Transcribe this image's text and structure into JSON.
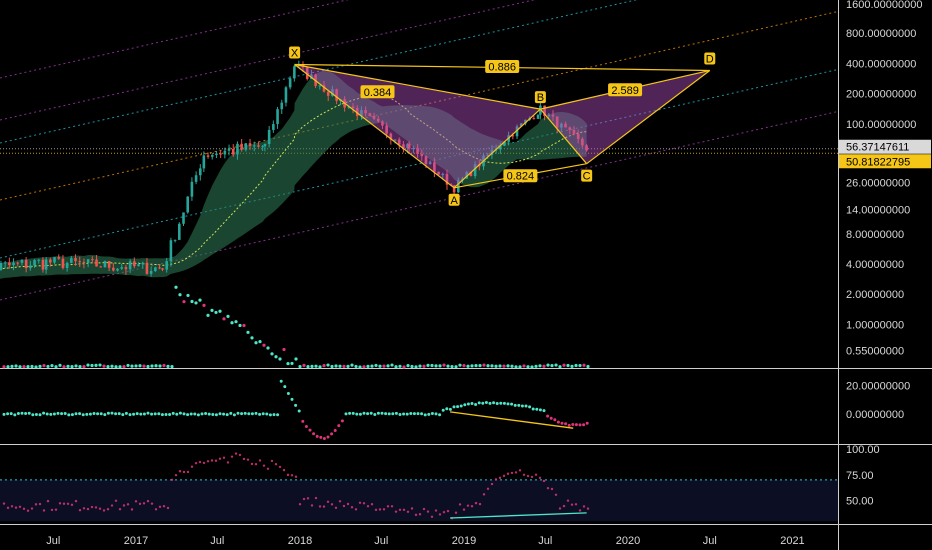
{
  "chart_data": {
    "type": "line",
    "y_scale": "log",
    "title": "",
    "xlabel": "",
    "ylabel": "",
    "x_ticks": [
      "Jul",
      "2017",
      "Jul",
      "2018",
      "Jul",
      "2019",
      "Jul",
      "2020",
      "Jul",
      "2021"
    ],
    "main_pane": {
      "y_ticks": [
        "1600.00000000",
        "800.00000000",
        "400.00000000",
        "200.00000000",
        "100.00000000",
        "26.00000000",
        "14.00000000",
        "8.00000000",
        "4.00000000",
        "2.00000000",
        "1.00000000",
        "0.55000000"
      ],
      "price_badges": [
        {
          "text": "56.37147611",
          "color": "#d9d9d9"
        },
        {
          "text": "50.81822795",
          "color": "#f5c518"
        }
      ],
      "harmonic_pattern": {
        "points": [
          {
            "label": "X",
            "date": "2017-12-20",
            "price": 390
          },
          {
            "label": "A",
            "date": "2018-12-10",
            "price": 23
          },
          {
            "label": "B",
            "date": "2019-06-20",
            "price": 140
          },
          {
            "label": "C",
            "date": "2019-10-01",
            "price": 40
          },
          {
            "label": "D",
            "date": "2020-07-01",
            "price": 340
          }
        ],
        "ratios": [
          "0.384",
          "0.886",
          "2.589",
          "0.824"
        ],
        "color": "#f5c518",
        "fill": "#b44fc2"
      }
    },
    "osc_pane_1": {
      "y_ticks": [
        "20.00000000",
        "0.00000000"
      ],
      "divergence_line": {
        "from": [
          "2018-12",
          1.5
        ],
        "to": [
          "2019-09",
          -10
        ]
      }
    },
    "osc_pane_2": {
      "y_ticks": [
        "100.00",
        "75.00",
        "50.00"
      ],
      "upper_band": 70,
      "divergence_line": {
        "from": [
          "2018-12",
          33
        ],
        "to": [
          "2019-10",
          38
        ]
      }
    },
    "colors": {
      "background": "#000000",
      "bull_candle": "#26a69a",
      "bear_candle": "#ef5350",
      "pattern": "#f5c518",
      "cloud": "#2e7d5a",
      "dots_up": "#4ee6c8",
      "dots_down": "#e0337a",
      "channel_purple": "#b040c0",
      "channel_cyan": "#26c6da",
      "channel_orange": "#ff9800"
    }
  }
}
